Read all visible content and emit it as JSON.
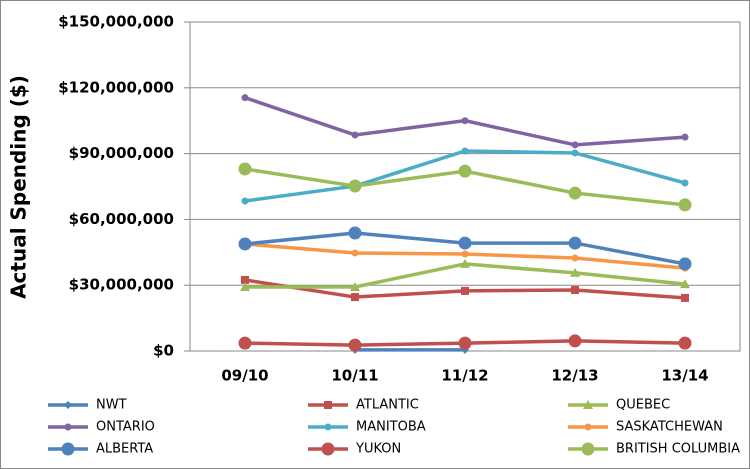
{
  "chart_data": {
    "type": "line",
    "y_label": "Actual Spending ($)",
    "categories": [
      "09/10",
      "10/11",
      "11/12",
      "12/13",
      "13/14"
    ],
    "ylim": [
      0,
      150000000
    ],
    "yticks": [
      {
        "value": 0,
        "label": "$0"
      },
      {
        "value": 30000000,
        "label": "$30,000,000"
      },
      {
        "value": 60000000,
        "label": "$60,000,000"
      },
      {
        "value": 90000000,
        "label": "$90,000,000"
      },
      {
        "value": 120000000,
        "label": "$120,000,000"
      },
      {
        "value": 150000000,
        "label": "$150,000,000"
      }
    ],
    "grid": true,
    "legend": "bottom",
    "series": [
      {
        "name": "NWT",
        "color": "#4f81bd",
        "marker": "diamond",
        "values": [
          null,
          500000,
          500000,
          null,
          null
        ]
      },
      {
        "name": "ATLANTIC",
        "color": "#c0504d",
        "marker": "square",
        "values": [
          32400000,
          24600000,
          27400000,
          27800000,
          24200000
        ]
      },
      {
        "name": "QUEBEC",
        "color": "#9bbb59",
        "marker": "triangle",
        "values": [
          29200000,
          29200000,
          39700000,
          35600000,
          30500000
        ]
      },
      {
        "name": "ONTARIO",
        "color": "#8064a2",
        "marker": "small",
        "values": [
          115500000,
          98500000,
          105000000,
          94000000,
          97500000
        ]
      },
      {
        "name": "MANITOBA",
        "color": "#4bacc6",
        "marker": "small",
        "values": [
          68400000,
          75200000,
          91200000,
          90300000,
          76600000
        ]
      },
      {
        "name": "SASKATCHEWAN",
        "color": "#f79646",
        "marker": "small",
        "values": [
          48800000,
          44700000,
          44200000,
          42400000,
          37800000
        ]
      },
      {
        "name": "ALBERTA",
        "color": "#4f81bd",
        "marker": "circle",
        "values": [
          48800000,
          53800000,
          49200000,
          49200000,
          39700000
        ]
      },
      {
        "name": "YUKON",
        "color": "#c0504d",
        "marker": "circle",
        "values": [
          3600000,
          2700000,
          3600000,
          4600000,
          3600000
        ]
      },
      {
        "name": "BRITISH COLUMBIA",
        "color": "#9bbb59",
        "marker": "circle",
        "values": [
          83000000,
          75200000,
          82000000,
          72000000,
          66600000
        ]
      }
    ]
  }
}
